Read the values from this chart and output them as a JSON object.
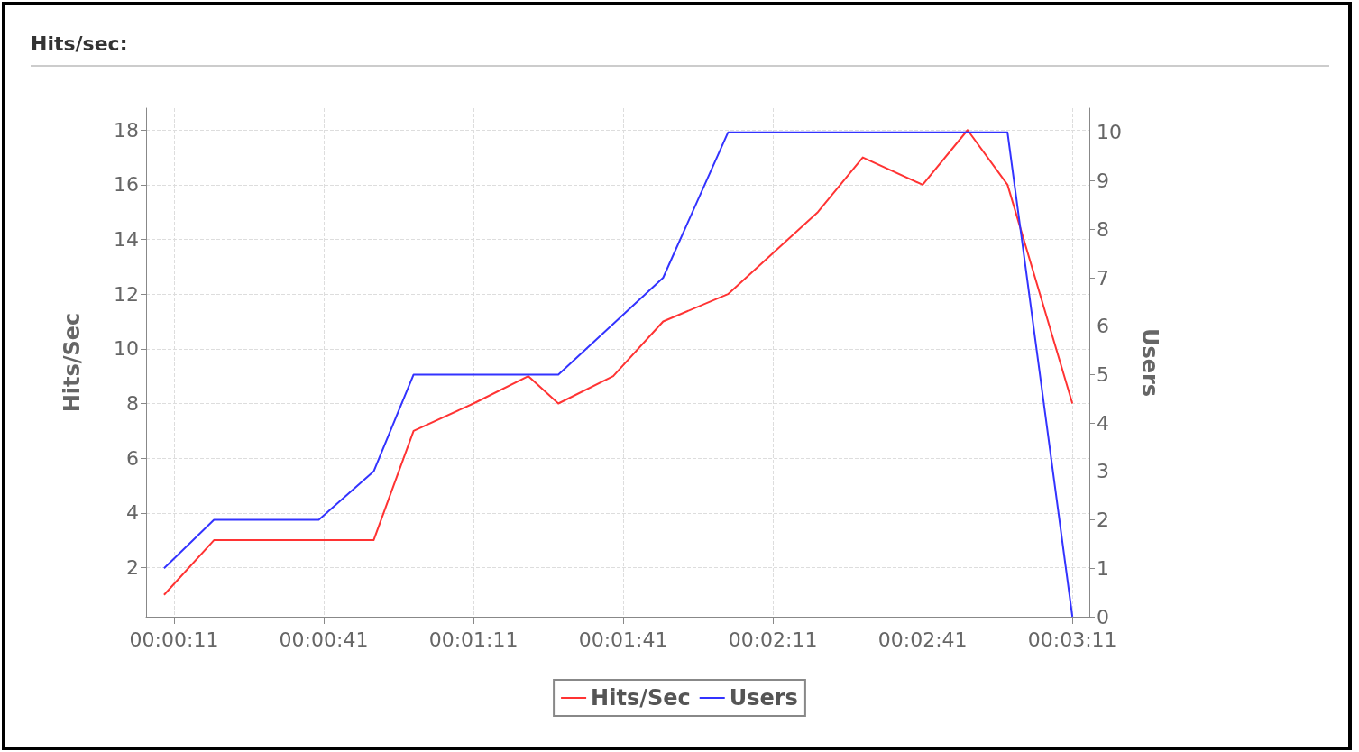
{
  "chart_data": {
    "type": "line",
    "title": "Hits/sec:",
    "ylabel": "Hits/Sec",
    "y2label": "Users",
    "xlim": [
      5.4,
      194.4
    ],
    "xticks": [
      {
        "value": 11,
        "label": "00:00:11"
      },
      {
        "value": 41,
        "label": "00:00:41"
      },
      {
        "value": 71,
        "label": "00:01:11"
      },
      {
        "value": 101,
        "label": "00:01:41"
      },
      {
        "value": 131,
        "label": "00:02:11"
      },
      {
        "value": 161,
        "label": "00:02:41"
      },
      {
        "value": 191,
        "label": "00:03:11"
      }
    ],
    "ylim": [
      0.2,
      18.8
    ],
    "yticks": [
      2,
      4,
      6,
      8,
      10,
      12,
      14,
      16,
      18
    ],
    "y2lim": [
      0,
      10.5
    ],
    "y2ticks": [
      0,
      1,
      2,
      3,
      4,
      5,
      6,
      7,
      8,
      9,
      10
    ],
    "series": [
      {
        "name": "Hits/Sec",
        "color": "#ff3333",
        "x": [
          9,
          19,
          51,
          59,
          71,
          82,
          88,
          99,
          109,
          122,
          140,
          149,
          161,
          170,
          178,
          191
        ],
        "values": [
          1,
          3,
          3,
          7,
          8,
          9,
          8,
          9,
          11,
          12,
          15,
          17,
          16,
          18,
          16,
          8
        ]
      },
      {
        "name": "Users",
        "color": "#3333ff",
        "axis": "y2",
        "x": [
          9,
          19,
          40,
          51,
          59,
          88,
          109,
          122,
          178,
          191
        ],
        "values": [
          1,
          2,
          2,
          3,
          5,
          5,
          7,
          10,
          10,
          0
        ]
      }
    ],
    "grid": true,
    "legend": "bottom",
    "marker": "none",
    "line_style": "solid"
  }
}
